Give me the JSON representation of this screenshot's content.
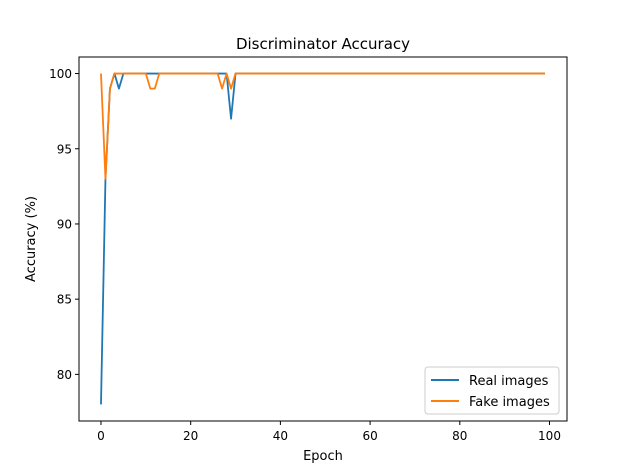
{
  "chart_data": {
    "type": "line",
    "title": "Discriminator Accuracy",
    "xlabel": "Epoch",
    "ylabel": "Accuracy (%)",
    "xlim": [
      -4.9,
      103.9
    ],
    "ylim": [
      76.9,
      101.1
    ],
    "xticks": [
      0,
      20,
      40,
      60,
      80,
      100
    ],
    "yticks": [
      80,
      85,
      90,
      95,
      100
    ],
    "grid": false,
    "legend_position": "lower right",
    "x": "epochs 0..99",
    "series": [
      {
        "name": "Real images",
        "color": "#1f77b4",
        "points": {
          "0": 78,
          "1": 93,
          "2": 99,
          "3": 100,
          "4": 99,
          "5": 100,
          "28": 100,
          "29": 97,
          "30": 100
        },
        "default": 100
      },
      {
        "name": "Fake images",
        "color": "#ff7f0e",
        "points": {
          "0": 100,
          "1": 93,
          "2": 99,
          "3": 100,
          "11": 99,
          "12": 99,
          "13": 100,
          "26": 100,
          "27": 99,
          "28": 100,
          "29": 99,
          "30": 100
        },
        "default": 100
      }
    ]
  }
}
